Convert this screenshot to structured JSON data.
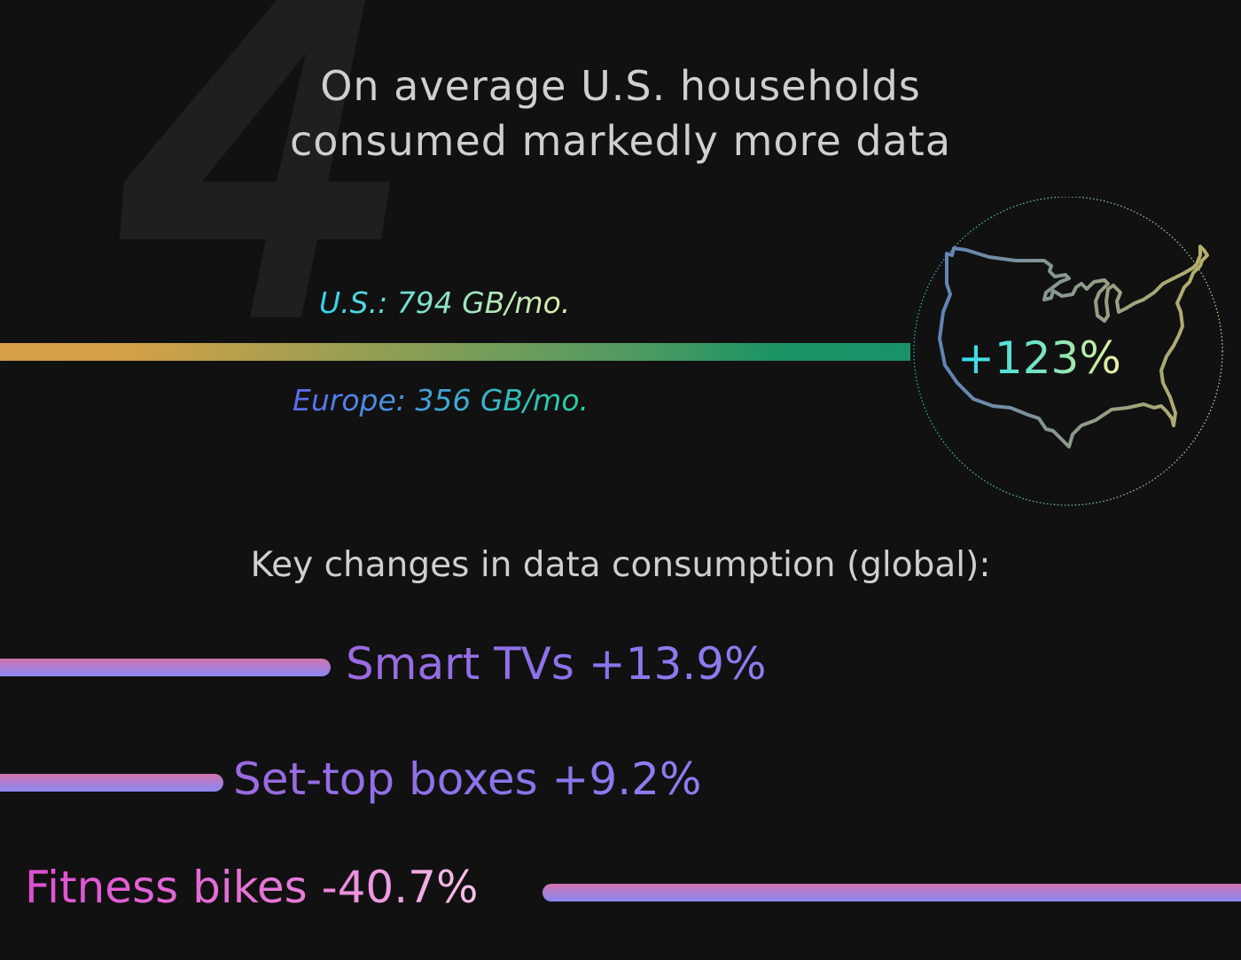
{
  "section_number": "4",
  "headline": {
    "line1": "On average U.S. households",
    "line2": "consumed markedly more data"
  },
  "comparison": {
    "us_label": "U.S.: 794 GB/mo.",
    "europe_label": "Europe: 356 GB/mo.",
    "us_gb_per_month": 794,
    "europe_gb_per_month": 356,
    "difference_label": "+123%",
    "map_icon": "us-map-outline-icon"
  },
  "key_changes": {
    "title": "Key changes in data consumption (global):",
    "items": [
      {
        "label": "Smart TVs +13.9%",
        "change_pct": 13.9
      },
      {
        "label": "Set-top boxes +9.2%",
        "change_pct": 9.2
      },
      {
        "label": "Fitness bikes -40.7%",
        "change_pct": -40.7
      }
    ]
  },
  "colors": {
    "background": "#111111",
    "headline_text": "#cfcfcf",
    "big_number": "#202020",
    "main_bar_start": "#d79e45",
    "main_bar_end": "#17936a",
    "pill_top": "#d472ad",
    "pill_bottom": "#8c87f5"
  }
}
